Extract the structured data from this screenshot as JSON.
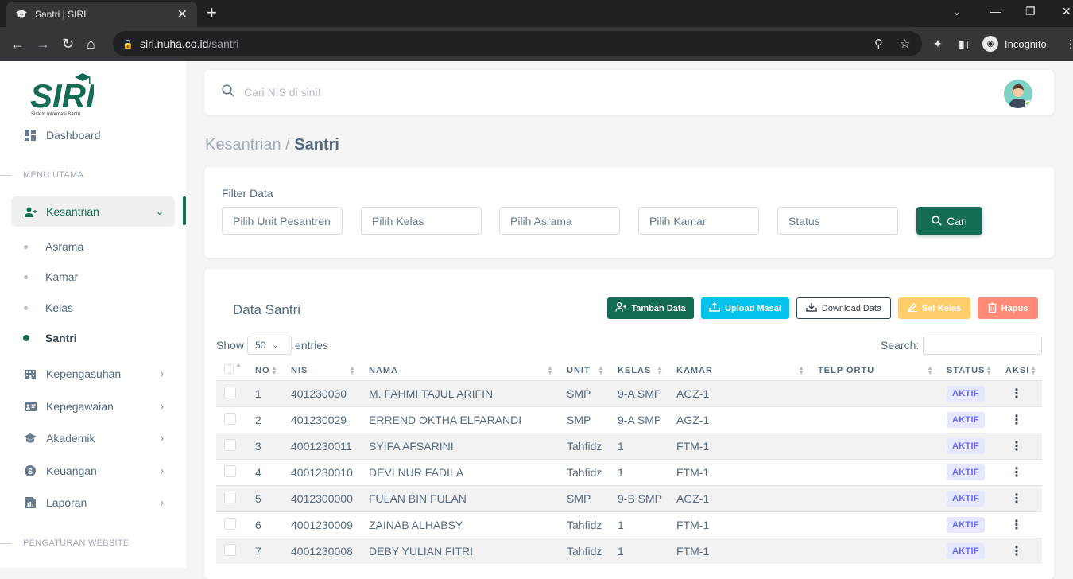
{
  "browser": {
    "tab_title": "Santri | SIRI",
    "url_host": "siri.nuha.co.id",
    "url_path": "/santri",
    "profile_label": "Incognito"
  },
  "sidebar": {
    "logo_text": "SIRI",
    "logo_tagline": "Sistem Informasi Santri",
    "dashboard": "Dashboard",
    "section_main": "MENU UTAMA",
    "kesantrian": "Kesantrian",
    "sub_items": [
      "Asrama",
      "Kamar",
      "Kelas",
      "Santri"
    ],
    "items": [
      "Kepengasuhan",
      "Kepegawaian",
      "Akademik",
      "Keuangan",
      "Laporan"
    ],
    "section_web": "PENGATURAN WEBSITE"
  },
  "topnav": {
    "search_placeholder": "Cari NIS di sini!"
  },
  "breadcrumb": {
    "parent": "Kesantrian / ",
    "current": "Santri"
  },
  "filter": {
    "label": "Filter Data",
    "selects": [
      "Pilih Unit Pesantren",
      "Pilih Kelas",
      "Pilih Asrama",
      "Pilih Kamar",
      "Status"
    ],
    "button": "Cari"
  },
  "data": {
    "title": "Data Santri",
    "actions": {
      "tambah": "Tambah Data",
      "upload": "Upload Masal",
      "download": "Download Data",
      "set_kelas": "Set Kelas",
      "hapus": "Hapus"
    },
    "show_label": "Show",
    "entries_value": "50",
    "entries_label": "entries",
    "search_label": "Search:",
    "columns": [
      "NO",
      "NIS",
      "NAMA",
      "UNIT",
      "KELAS",
      "KAMAR",
      "TELP ORTU",
      "STATUS",
      "AKSI"
    ],
    "rows": [
      {
        "no": "1",
        "nis": "401230030",
        "nama": "M. FAHMI TAJUL ARIFIN",
        "unit": "SMP",
        "kelas": "9-A SMP",
        "kamar": "AGZ-1",
        "telp": "",
        "status": "AKTIF"
      },
      {
        "no": "2",
        "nis": "401230029",
        "nama": "ERREND OKTHA ELFARANDI",
        "unit": "SMP",
        "kelas": "9-A SMP",
        "kamar": "AGZ-1",
        "telp": "",
        "status": "AKTIF"
      },
      {
        "no": "3",
        "nis": "4001230011",
        "nama": "SYIFA AFSARINI",
        "unit": "Tahfidz",
        "kelas": "1",
        "kamar": "FTM-1",
        "telp": "",
        "status": "AKTIF"
      },
      {
        "no": "4",
        "nis": "4001230010",
        "nama": "DEVI NUR FADILA",
        "unit": "Tahfidz",
        "kelas": "1",
        "kamar": "FTM-1",
        "telp": "",
        "status": "AKTIF"
      },
      {
        "no": "5",
        "nis": "4012300000",
        "nama": "FULAN BIN FULAN",
        "unit": "SMP",
        "kelas": "9-B SMP",
        "kamar": "AGZ-1",
        "telp": "",
        "status": "AKTIF"
      },
      {
        "no": "6",
        "nis": "4001230009",
        "nama": "ZAINAB ALHABSY",
        "unit": "Tahfidz",
        "kelas": "1",
        "kamar": "FTM-1",
        "telp": "",
        "status": "AKTIF"
      },
      {
        "no": "7",
        "nis": "4001230008",
        "nama": "DEBY YULIAN FITRI",
        "unit": "Tahfidz",
        "kelas": "1",
        "kamar": "FTM-1",
        "telp": "",
        "status": "AKTIF"
      }
    ]
  },
  "colors": {
    "primary": "#146c55",
    "info": "#03c3ec",
    "warning": "#ffab00",
    "danger": "#ff3e1d"
  }
}
